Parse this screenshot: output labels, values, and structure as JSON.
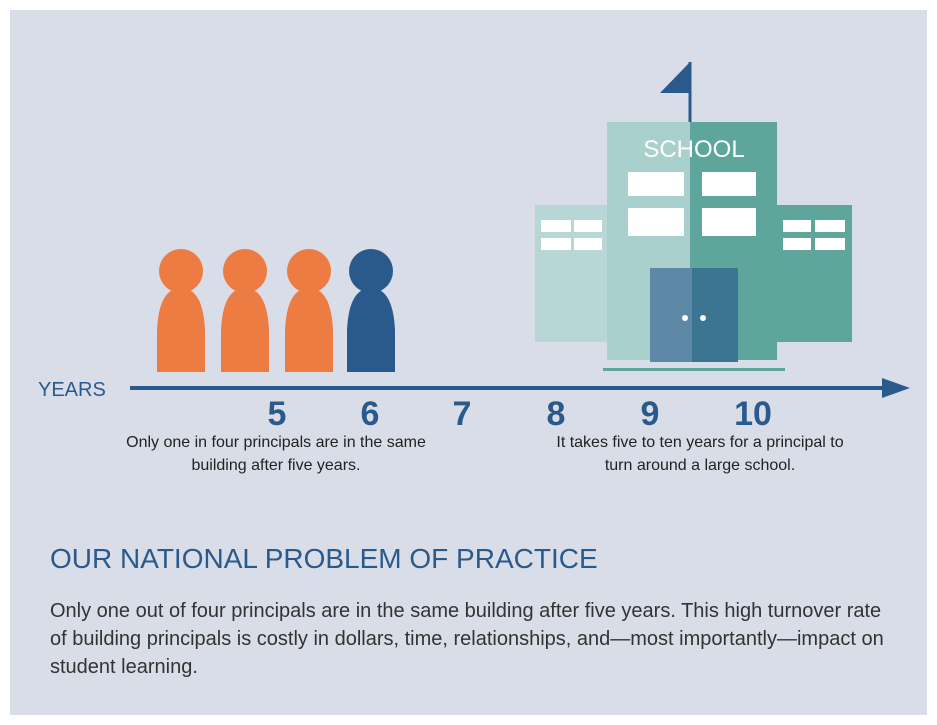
{
  "timeline": {
    "axis_label": "YEARS",
    "years": [
      5,
      6,
      7,
      8,
      9,
      10
    ],
    "captions": [
      "Only one in four principals are in the same building after five years.",
      "It takes five to ten years for a principal to turn around a large school."
    ]
  },
  "school_sign": "SCHOOL",
  "section": {
    "heading": "OUR NATIONAL PROBLEM OF PRACTICE",
    "body": "Only one out of four principals are in the same building after five years. This high turnover rate of building principals is costly in dollars, time, relationships, and—most importantly—impact on student learning."
  }
}
